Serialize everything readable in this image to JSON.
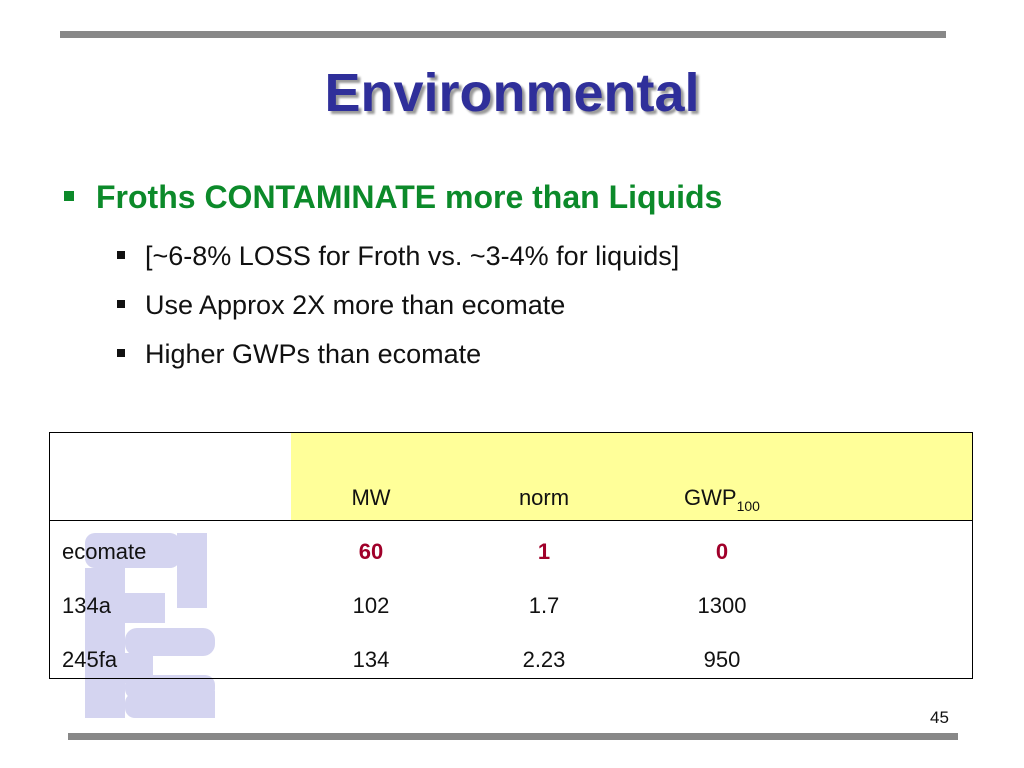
{
  "title": "Environmental",
  "bullet": {
    "text": "Froths CONTAMINATE more than Liquids",
    "subitems": [
      "[~6-8% LOSS for Froth vs. ~3-4% for liquids]",
      "Use Approx 2X more than ecomate",
      "Higher GWPs than ecomate"
    ]
  },
  "table": {
    "headers": {
      "mw": "MW",
      "norm": "norm",
      "gwp": "GWP",
      "gwp_sub": "100"
    },
    "rows": [
      {
        "name": "ecomate",
        "mw": "60",
        "norm": "1",
        "gwp": "0"
      },
      {
        "name": "134a",
        "mw": "102",
        "norm": "1.7",
        "gwp": "1300"
      },
      {
        "name": "245fa",
        "mw": "134",
        "norm": "2.23",
        "gwp": "950"
      }
    ],
    "header_fill_color": "#ffff99",
    "highlight_color": "#a0002a"
  },
  "page_number": "45",
  "colors": {
    "title": "#2f2f9a",
    "bullet": "#0c8a2a",
    "rule": "#888888",
    "watermark": "#d4d4f0"
  },
  "watermark_icon": "fs-logo-watermark"
}
